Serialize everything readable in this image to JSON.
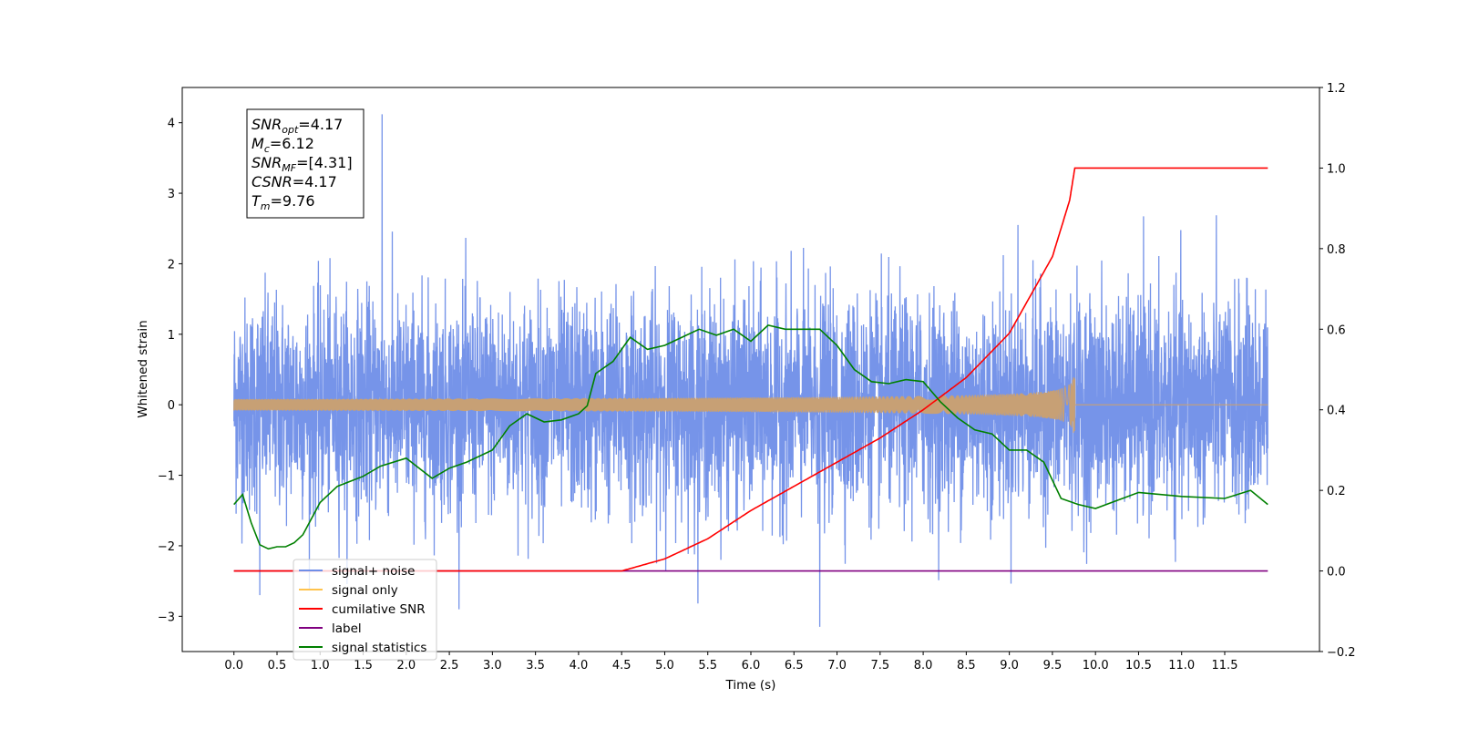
{
  "chart_data": {
    "type": "line",
    "xlabel": "Time (s)",
    "ylabel": "Whitened strain",
    "xlim": [
      -0.6,
      12.6
    ],
    "ylim": [
      -3.5,
      4.5
    ],
    "y2lim": [
      -0.2,
      1.2
    ],
    "x_ticks": [
      0.0,
      0.5,
      1.0,
      1.5,
      2.0,
      2.5,
      3.0,
      3.5,
      4.0,
      4.5,
      5.0,
      5.5,
      6.0,
      6.5,
      7.0,
      7.5,
      8.0,
      8.5,
      9.0,
      9.5,
      10.0,
      10.5,
      11.0,
      11.5
    ],
    "x_tick_labels": [
      "0.0",
      "0.5",
      "1.0",
      "1.5",
      "2.0",
      "2.5",
      "3.0",
      "3.5",
      "4.0",
      "4.5",
      "5.0",
      "5.5",
      "6.0",
      "6.5",
      "7.0",
      "7.5",
      "8.0",
      "8.5",
      "9.0",
      "9.5",
      "10.0",
      "10.5",
      "11.0",
      "11.5"
    ],
    "y_ticks": [
      -3,
      -2,
      -1,
      0,
      1,
      2,
      3,
      4
    ],
    "y_tick_labels": [
      "−3",
      "−2",
      "−1",
      "0",
      "1",
      "2",
      "3",
      "4"
    ],
    "y2_ticks": [
      -0.2,
      0.0,
      0.2,
      0.4,
      0.6,
      0.8,
      1.0,
      1.2
    ],
    "y2_tick_labels": [
      "−0.2",
      "0.0",
      "0.2",
      "0.4",
      "0.6",
      "0.8",
      "1.0",
      "1.2"
    ],
    "grid": false,
    "legend_position": "lower-left",
    "annotation_box_position": "top-left",
    "annotations": [
      {
        "base": "SNR",
        "sub": "opt",
        "value": "=4.17"
      },
      {
        "base": "M",
        "sub": "c",
        "value": "=6.12"
      },
      {
        "base": "SNR",
        "sub": "MF",
        "value": "=[4.31]"
      },
      {
        "base": "CSNR",
        "sub": "",
        "value": "=4.17"
      },
      {
        "base": "T",
        "sub": "m",
        "value": "=9.76"
      }
    ],
    "series": [
      {
        "name": "signal+ noise",
        "axis": "left",
        "color": "#6f8ee8",
        "kind": "noise",
        "x_range": [
          0.0,
          12.0
        ],
        "typical_range": [
          -1.8,
          2.0
        ],
        "max": 4.12,
        "min": -3.15
      },
      {
        "name": "signal only",
        "axis": "left",
        "color": "#ffc34d",
        "kind": "chirp",
        "x_range": [
          0.0,
          12.0
        ],
        "merger_time": 9.76,
        "peak_amplitude": 0.4
      },
      {
        "name": "cumilative SNR",
        "axis": "right",
        "color": "#ff0000",
        "x": [
          0.0,
          4.0,
          4.5,
          5.0,
          5.5,
          6.0,
          6.5,
          7.0,
          7.5,
          8.0,
          8.5,
          9.0,
          9.5,
          9.7,
          9.76,
          12.0
        ],
        "values": [
          0.0,
          0.0,
          0.0,
          0.03,
          0.08,
          0.15,
          0.21,
          0.27,
          0.33,
          0.4,
          0.48,
          0.59,
          0.78,
          0.92,
          1.0,
          1.0
        ]
      },
      {
        "name": "label",
        "axis": "right",
        "color": "#800080",
        "x": [
          0.0,
          12.0
        ],
        "values": [
          0.0,
          0.0
        ]
      },
      {
        "name": "signal statistics",
        "axis": "right",
        "color": "#008000",
        "x": [
          0.0,
          0.1,
          0.2,
          0.3,
          0.4,
          0.5,
          0.6,
          0.7,
          0.8,
          1.0,
          1.2,
          1.5,
          1.7,
          2.0,
          2.3,
          2.5,
          2.7,
          3.0,
          3.2,
          3.4,
          3.6,
          3.8,
          4.0,
          4.1,
          4.2,
          4.4,
          4.6,
          4.8,
          5.0,
          5.2,
          5.4,
          5.6,
          5.8,
          6.0,
          6.2,
          6.4,
          6.6,
          6.8,
          7.0,
          7.2,
          7.4,
          7.6,
          7.8,
          8.0,
          8.2,
          8.4,
          8.6,
          8.8,
          9.0,
          9.2,
          9.4,
          9.6,
          9.8,
          10.0,
          10.5,
          11.0,
          11.5,
          11.8,
          12.0
        ],
        "values": [
          0.165,
          0.19,
          0.12,
          0.065,
          0.055,
          0.06,
          0.06,
          0.07,
          0.09,
          0.17,
          0.21,
          0.235,
          0.26,
          0.28,
          0.23,
          0.255,
          0.27,
          0.3,
          0.36,
          0.39,
          0.37,
          0.375,
          0.39,
          0.41,
          0.49,
          0.52,
          0.58,
          0.55,
          0.56,
          0.58,
          0.6,
          0.585,
          0.6,
          0.57,
          0.61,
          0.6,
          0.6,
          0.6,
          0.56,
          0.5,
          0.47,
          0.465,
          0.475,
          0.47,
          0.42,
          0.38,
          0.35,
          0.34,
          0.3,
          0.3,
          0.27,
          0.18,
          0.165,
          0.155,
          0.195,
          0.185,
          0.18,
          0.2,
          0.165
        ]
      }
    ]
  }
}
